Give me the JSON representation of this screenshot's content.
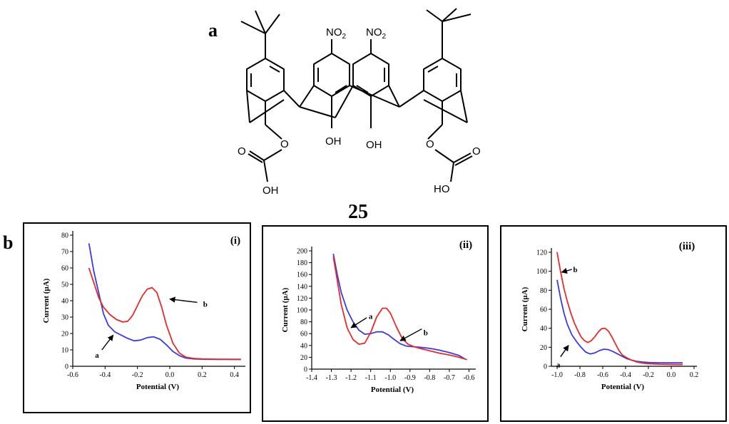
{
  "labels": {
    "a": "a",
    "b": "b",
    "compound": "25"
  },
  "molecule": {
    "nitro_1": "NO",
    "nitro_2": "NO",
    "nitro_sub": "2",
    "hydroxy_1": "OH",
    "hydroxy_2": "OH",
    "oxygen": "O",
    "carboxyl_oh": "OH",
    "carboxyl_ho": "HO"
  },
  "colors": {
    "curve_a": "#3a3ae8",
    "curve_b": "#e82a2a",
    "axis": "#000000"
  },
  "chart_data": [
    {
      "type": "line",
      "panel_label": "(i)",
      "xlabel": "Potential (V)",
      "ylabel": "Current (µA)",
      "xlim": [
        -0.6,
        0.45
      ],
      "ylim": [
        0,
        80
      ],
      "xticks": [
        -0.6,
        -0.4,
        -0.2,
        0.0,
        0.2,
        0.4
      ],
      "xtick_labels": [
        "-0.6",
        "-0.4",
        "-0.2",
        "0.0",
        "0.2",
        "0.4"
      ],
      "yticks": [
        0,
        10,
        20,
        30,
        40,
        50,
        60,
        70,
        80
      ],
      "ytick_labels": [
        "0",
        "10",
        "20",
        "30",
        "40",
        "50",
        "60",
        "70",
        "80"
      ],
      "series": [
        {
          "name": "a",
          "color": "#3a3ae8",
          "x": [
            -0.5,
            -0.47,
            -0.44,
            -0.41,
            -0.38,
            -0.34,
            -0.3,
            -0.26,
            -0.22,
            -0.18,
            -0.14,
            -0.1,
            -0.06,
            -0.02,
            0.02,
            0.06,
            0.1,
            0.15,
            0.2,
            0.3,
            0.44
          ],
          "y": [
            75,
            58,
            45,
            32,
            25,
            21,
            19,
            17,
            15.5,
            16,
            17.5,
            18,
            16.5,
            13,
            9,
            6.5,
            5,
            4.5,
            4.3,
            4.2,
            4.2
          ]
        },
        {
          "name": "b",
          "color": "#e82a2a",
          "x": [
            -0.5,
            -0.47,
            -0.44,
            -0.41,
            -0.37,
            -0.33,
            -0.29,
            -0.26,
            -0.23,
            -0.2,
            -0.17,
            -0.14,
            -0.11,
            -0.08,
            -0.05,
            -0.02,
            0.02,
            0.06,
            0.1,
            0.15,
            0.2,
            0.3,
            0.44
          ],
          "y": [
            60,
            51,
            42,
            36,
            31.5,
            28.5,
            27,
            27.5,
            31,
            37,
            43,
            47,
            48,
            45,
            36,
            25,
            14,
            8,
            5.5,
            4.8,
            4.5,
            4.3,
            4.2
          ]
        }
      ],
      "curve_labels": [
        {
          "text": "a",
          "series": "a",
          "x": -0.45,
          "y": 7
        },
        {
          "text": "b",
          "series": "b",
          "x": 0.22,
          "y": 38
        }
      ],
      "arrows": [
        {
          "series": "a",
          "from": [
            -0.42,
            10
          ],
          "to": [
            -0.35,
            19
          ]
        },
        {
          "series": "b",
          "from": [
            0.17,
            39
          ],
          "to": [
            0.0,
            41
          ]
        }
      ]
    },
    {
      "type": "line",
      "panel_label": "(ii)",
      "xlabel": "Potential (V)",
      "ylabel": "Current (µA)",
      "xlim": [
        -1.4,
        -0.58
      ],
      "ylim": [
        0,
        200
      ],
      "xticks": [
        -1.4,
        -1.3,
        -1.2,
        -1.1,
        -1.0,
        -0.9,
        -0.8,
        -0.7,
        -0.6
      ],
      "xtick_labels": [
        "-1.4",
        "-1.3",
        "-1.2",
        "-1.1",
        "-1.0",
        "-0.9",
        "-0.8",
        "-0.7",
        "-0.6"
      ],
      "yticks": [
        0,
        20,
        40,
        60,
        80,
        100,
        120,
        140,
        160,
        180,
        200
      ],
      "ytick_labels": [
        "0",
        "20",
        "40",
        "60",
        "80",
        "100",
        "120",
        "140",
        "160",
        "180",
        "200"
      ],
      "series": [
        {
          "name": "a",
          "color": "#3a3ae8",
          "x": [
            -1.29,
            -1.27,
            -1.25,
            -1.22,
            -1.19,
            -1.16,
            -1.13,
            -1.1,
            -1.07,
            -1.04,
            -1.01,
            -0.98,
            -0.95,
            -0.92,
            -0.89,
            -0.85,
            -0.8,
            -0.75,
            -0.7,
            -0.65,
            -0.62
          ],
          "y": [
            195,
            160,
            130,
            100,
            80,
            66,
            59,
            60,
            63,
            63,
            58,
            50,
            43,
            39,
            38,
            37,
            35,
            32,
            28,
            23,
            17
          ]
        },
        {
          "name": "b",
          "color": "#e82a2a",
          "x": [
            -1.29,
            -1.27,
            -1.25,
            -1.22,
            -1.19,
            -1.16,
            -1.13,
            -1.1,
            -1.07,
            -1.04,
            -1.02,
            -1.0,
            -0.97,
            -0.94,
            -0.91,
            -0.88,
            -0.85,
            -0.8,
            -0.75,
            -0.7,
            -0.65,
            -0.61
          ],
          "y": [
            190,
            150,
            110,
            70,
            50,
            42,
            44,
            62,
            88,
            103,
            103,
            95,
            72,
            52,
            42,
            38,
            35,
            31,
            27,
            24,
            20,
            16
          ]
        }
      ],
      "curve_labels": [
        {
          "text": "a",
          "series": "a",
          "x": -1.1,
          "y": 90
        },
        {
          "text": "b",
          "series": "b",
          "x": -0.82,
          "y": 62
        }
      ],
      "arrows": [
        {
          "series": "a",
          "from": [
            -1.12,
            87
          ],
          "to": [
            -1.2,
            70
          ]
        },
        {
          "series": "b",
          "from": [
            -0.84,
            68
          ],
          "to": [
            -0.95,
            48
          ]
        }
      ]
    },
    {
      "type": "line",
      "panel_label": "(iii)",
      "xlabel": "Potential (V)",
      "ylabel": "Current (µA)",
      "xlim": [
        -1.05,
        0.2
      ],
      "ylim": [
        0,
        120
      ],
      "xticks": [
        -1.0,
        -0.8,
        -0.6,
        -0.4,
        -0.2,
        0.0,
        0.2
      ],
      "xtick_labels": [
        "-1.0",
        "-0.8",
        "-0.6",
        "-0.4",
        "-0.2",
        "0.0",
        "0.2"
      ],
      "yticks": [
        0,
        20,
        40,
        60,
        80,
        100,
        120
      ],
      "ytick_labels": [
        "0",
        "20",
        "40",
        "60",
        "80",
        "100",
        "120"
      ],
      "series": [
        {
          "name": "a",
          "color": "#3a3ae8",
          "x": [
            -1.0,
            -0.97,
            -0.94,
            -0.91,
            -0.87,
            -0.83,
            -0.79,
            -0.75,
            -0.71,
            -0.67,
            -0.63,
            -0.59,
            -0.55,
            -0.51,
            -0.47,
            -0.43,
            -0.39,
            -0.35,
            -0.3,
            -0.25,
            -0.2,
            -0.1,
            0.0,
            0.1
          ],
          "y": [
            91,
            72,
            56,
            44,
            33,
            26,
            20,
            15,
            13,
            14,
            16.5,
            18,
            17.5,
            15.5,
            13,
            10.5,
            8,
            6.5,
            5.2,
            4.5,
            4,
            3.7,
            3.6,
            3.6
          ]
        },
        {
          "name": "b",
          "color": "#e82a2a",
          "x": [
            -1.0,
            -0.97,
            -0.94,
            -0.91,
            -0.88,
            -0.85,
            -0.82,
            -0.79,
            -0.76,
            -0.73,
            -0.7,
            -0.67,
            -0.64,
            -0.61,
            -0.58,
            -0.55,
            -0.52,
            -0.49,
            -0.46,
            -0.43,
            -0.39,
            -0.35,
            -0.3,
            -0.25,
            -0.2,
            -0.1,
            0.0,
            0.1
          ],
          "y": [
            120,
            100,
            82,
            68,
            56,
            46,
            38,
            31,
            27,
            25,
            27,
            31,
            36,
            39.5,
            40,
            37,
            31,
            24,
            17,
            12,
            9,
            6.5,
            4.5,
            3.3,
            2.8,
            2.2,
            1.9,
            1.8
          ]
        }
      ],
      "curve_labels": [
        {
          "text": "a",
          "series": "a",
          "x": -0.99,
          "y": 2
        },
        {
          "text": "b",
          "series": "b",
          "x": -0.84,
          "y": 102
        }
      ],
      "arrows": [
        {
          "series": "a",
          "from": [
            -0.97,
            10
          ],
          "to": [
            -0.9,
            22
          ]
        },
        {
          "series": "b",
          "from": [
            -0.87,
            102
          ],
          "to": [
            -0.96,
            99
          ]
        }
      ]
    }
  ]
}
